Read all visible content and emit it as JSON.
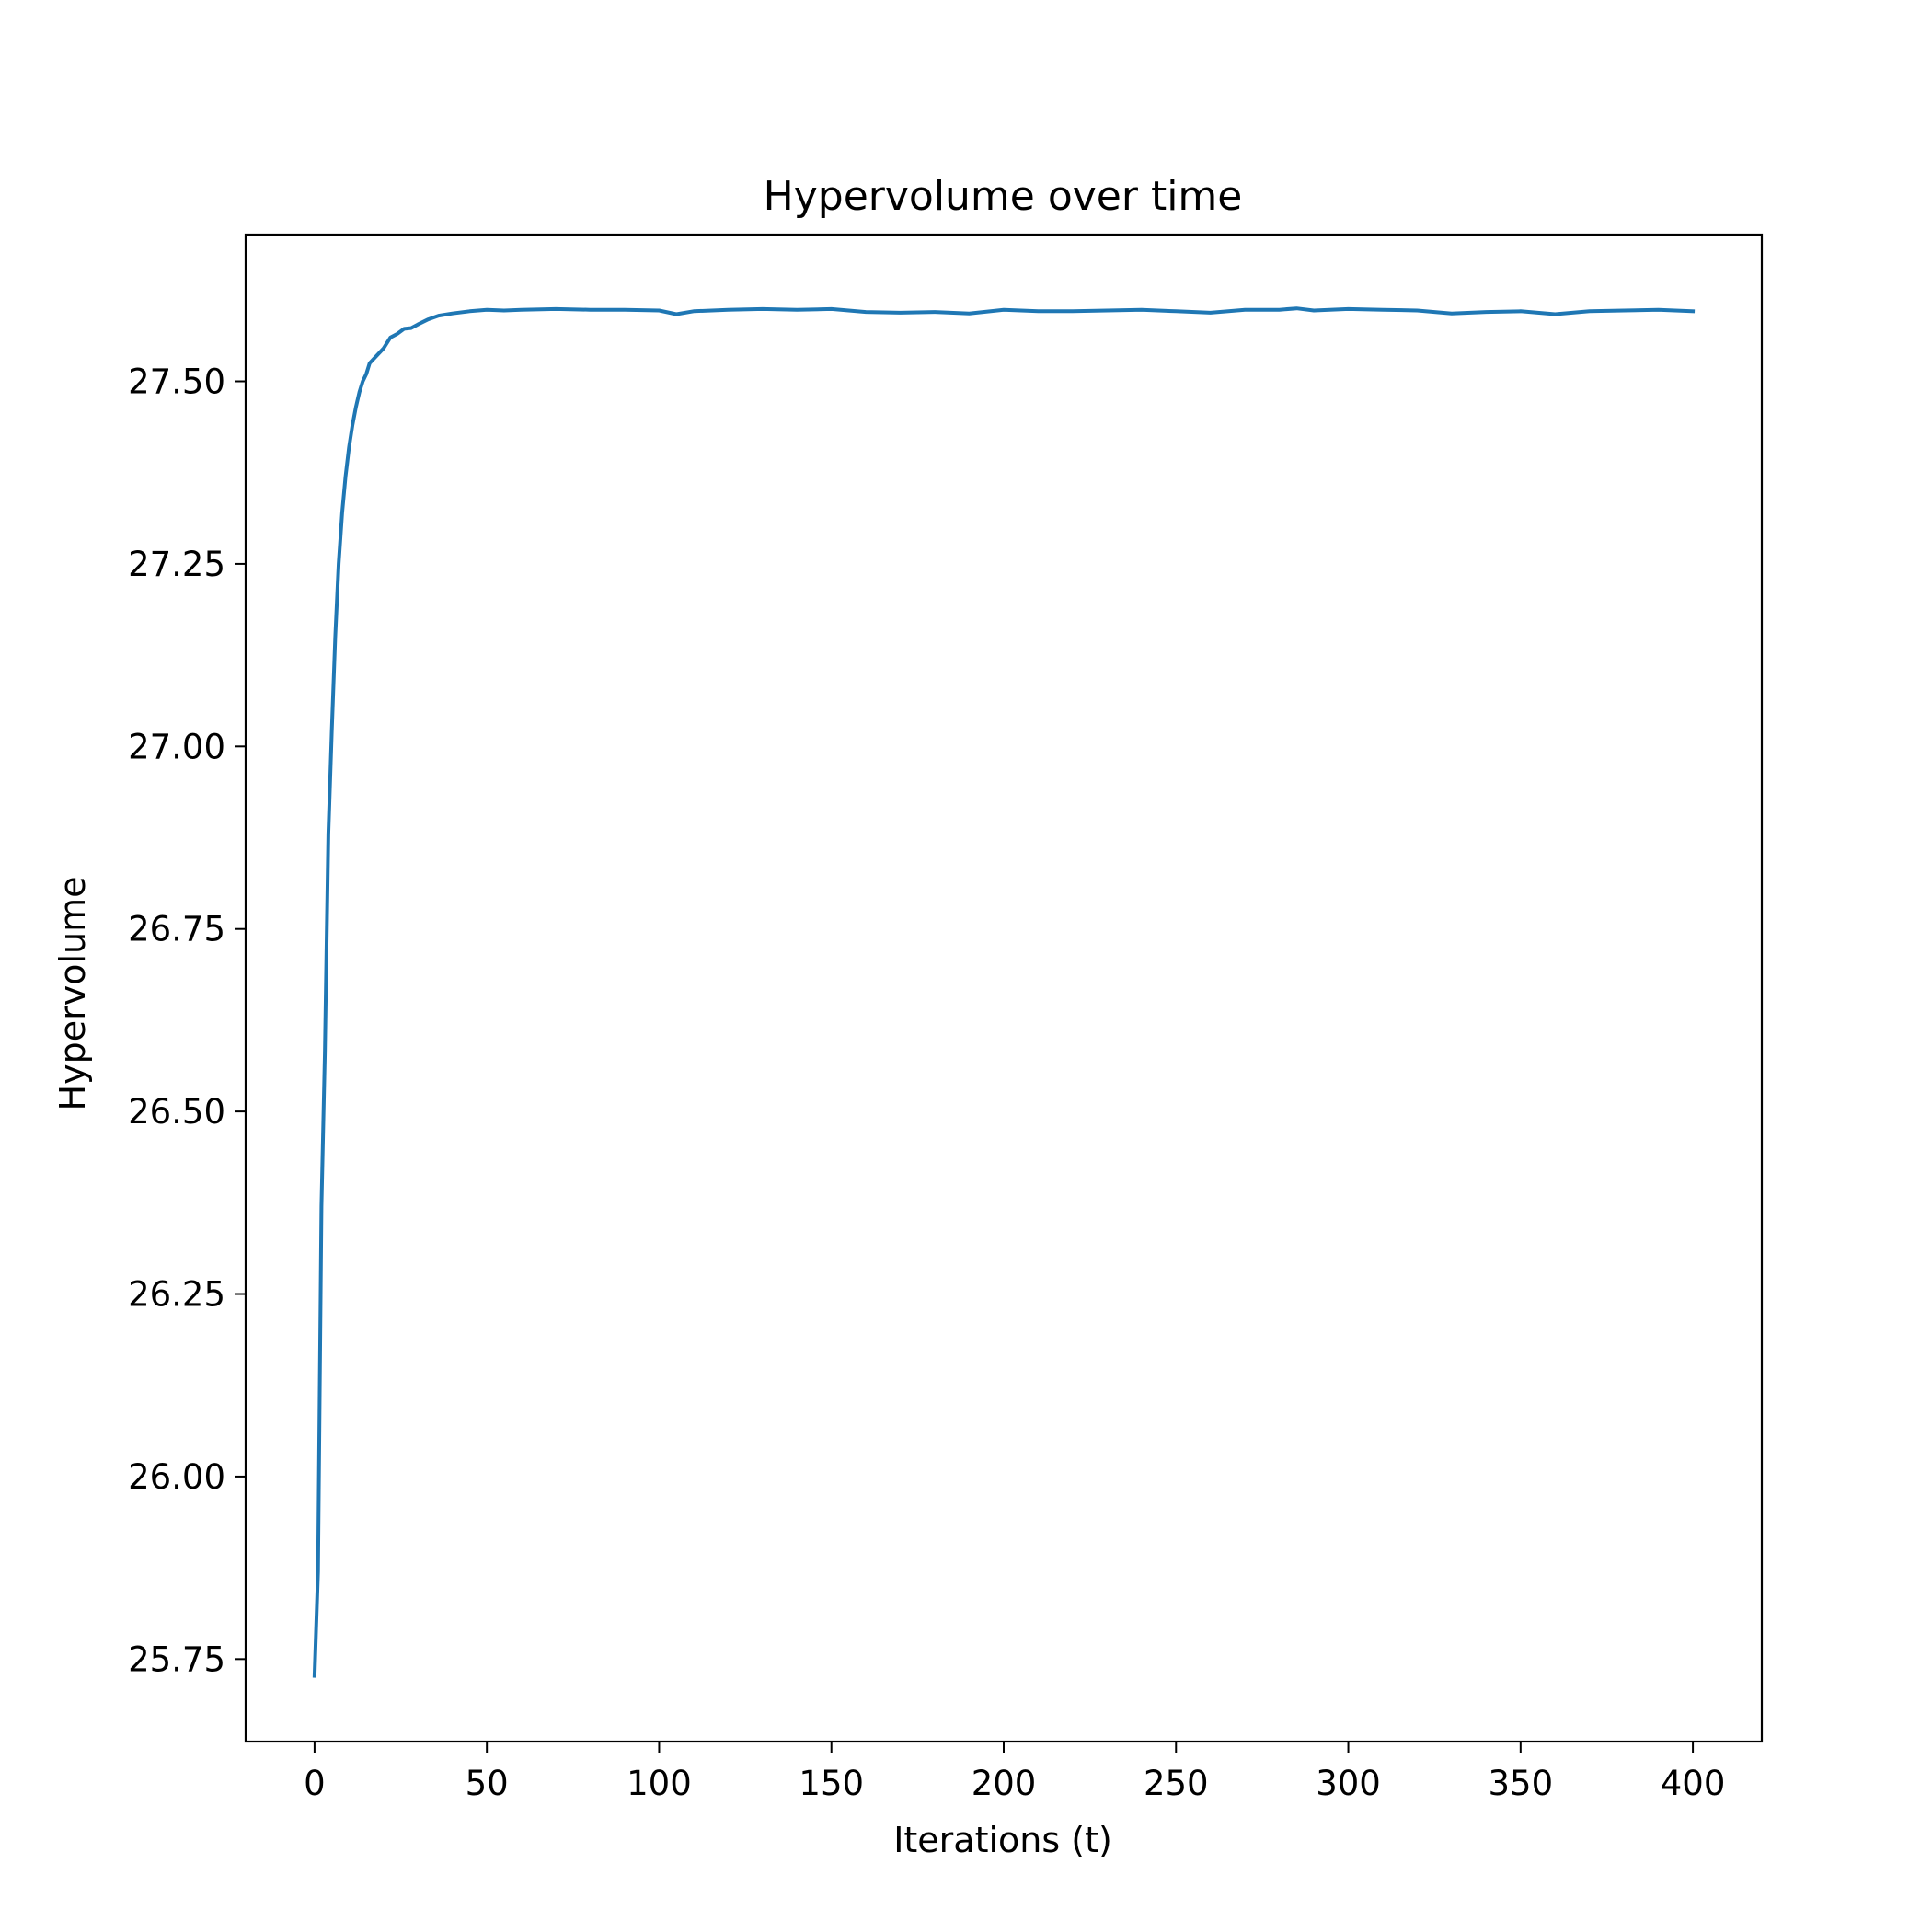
{
  "chart_data": {
    "type": "line",
    "title": "Hypervolume over time",
    "xlabel": "Iterations (t)",
    "ylabel": "Hypervolume",
    "xlim": [
      -20,
      420
    ],
    "ylim": [
      25.637,
      27.701
    ],
    "xticks": [
      0,
      50,
      100,
      150,
      200,
      250,
      300,
      350,
      400
    ],
    "xtick_labels": [
      "0",
      "50",
      "100",
      "150",
      "200",
      "250",
      "300",
      "350",
      "400"
    ],
    "yticks": [
      25.75,
      26.0,
      26.25,
      26.5,
      26.75,
      27.0,
      27.25,
      27.5
    ],
    "ytick_labels": [
      "25.75",
      "26.00",
      "26.25",
      "26.50",
      "26.75",
      "27.00",
      "27.25",
      "27.50"
    ],
    "grid": false,
    "legend": null,
    "series": [
      {
        "color": "#1f77b4",
        "x": [
          0,
          1,
          2,
          3,
          4,
          5,
          6,
          7,
          8,
          9,
          10,
          11,
          12,
          13,
          14,
          15,
          16,
          18,
          20,
          22,
          24,
          26,
          28,
          30,
          33,
          36,
          40,
          45,
          50,
          55,
          60,
          70,
          80,
          90,
          100,
          105,
          110,
          120,
          130,
          140,
          150,
          160,
          170,
          180,
          190,
          200,
          210,
          220,
          230,
          240,
          250,
          260,
          270,
          280,
          285,
          290,
          300,
          310,
          320,
          330,
          340,
          350,
          360,
          370,
          380,
          390,
          400
        ],
        "y": [
          25.727,
          25.87,
          26.37,
          26.58,
          26.88,
          27.02,
          27.15,
          27.25,
          27.32,
          27.37,
          27.41,
          27.44,
          27.465,
          27.485,
          27.5,
          27.51,
          27.525,
          27.535,
          27.545,
          27.56,
          27.565,
          27.572,
          27.573,
          27.578,
          27.585,
          27.59,
          27.593,
          27.596,
          27.598,
          27.597,
          27.598,
          27.599,
          27.598,
          27.598,
          27.597,
          27.592,
          27.596,
          27.598,
          27.599,
          27.598,
          27.599,
          27.595,
          27.594,
          27.595,
          27.593,
          27.598,
          27.596,
          27.596,
          27.597,
          27.598,
          27.596,
          27.594,
          27.598,
          27.598,
          27.6,
          27.597,
          27.599,
          27.598,
          27.597,
          27.593,
          27.595,
          27.596,
          27.592,
          27.596,
          27.597,
          27.598,
          27.596
        ]
      }
    ]
  }
}
